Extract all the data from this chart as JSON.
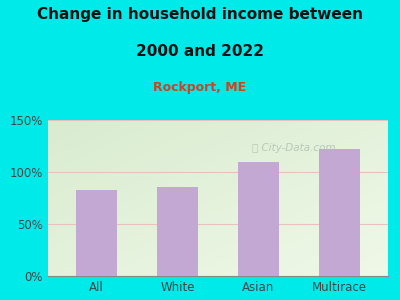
{
  "categories": [
    "All",
    "White",
    "Asian",
    "Multirace"
  ],
  "values": [
    83,
    86,
    110,
    122
  ],
  "bar_color": "#c4a8d4",
  "title_line1": "Change in household income between",
  "title_line2": "2000 and 2022",
  "subtitle": "Rockport, ME",
  "subtitle_color": "#cc4422",
  "title_color": "#111111",
  "bg_color": "#00eaea",
  "plot_bg_topleft": "#d8ecd0",
  "plot_bg_bottomright": "#f0f8e8",
  "ylim": [
    0,
    150
  ],
  "yticks": [
    0,
    50,
    100,
    150
  ],
  "ytick_labels": [
    "0%",
    "50%",
    "100%",
    "150%"
  ],
  "grid_color": "#e8c0c0",
  "watermark": "City-Data.com",
  "watermark_color": "#aabbaa",
  "title_fontsize": 11,
  "subtitle_fontsize": 9,
  "tick_fontsize": 8.5
}
